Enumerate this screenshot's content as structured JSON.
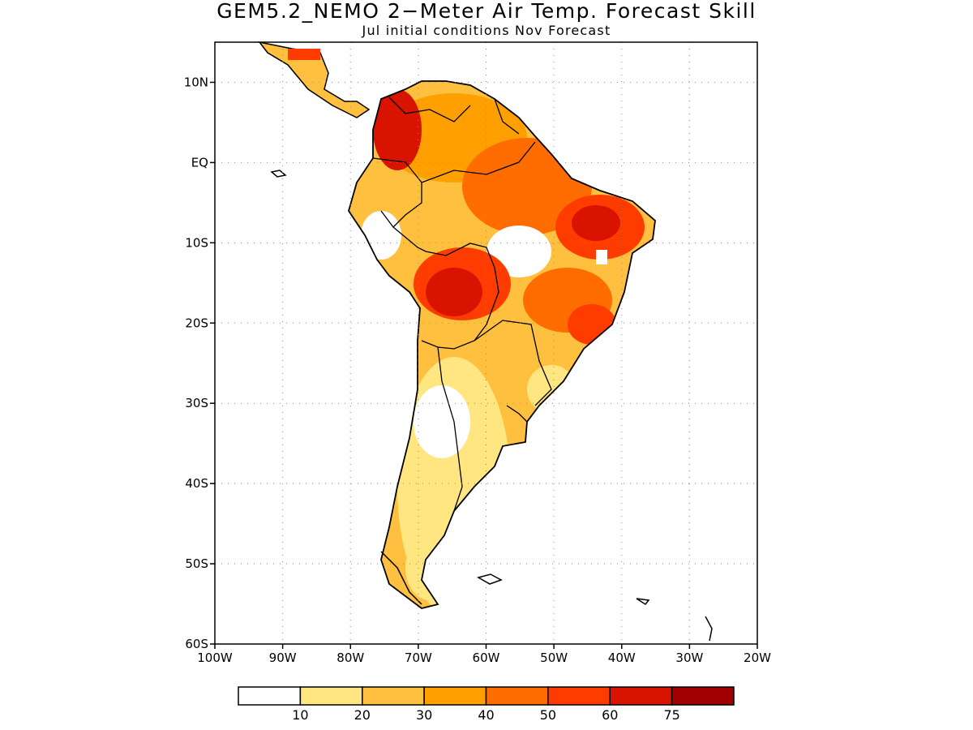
{
  "header": {
    "title": "GEM5.2_NEMO 2−Meter Air Temp. Forecast Skill",
    "subtitle": "Jul initial conditions  Nov Forecast"
  },
  "map": {
    "lon_range": [
      -100,
      -20
    ],
    "lat_range": [
      -60,
      15
    ],
    "y_ticks": [
      "10N",
      "EQ",
      "10S",
      "20S",
      "30S",
      "40S",
      "50S",
      "60S"
    ],
    "x_ticks": [
      "100W",
      "90W",
      "80W",
      "70W",
      "60W",
      "50W",
      "40W",
      "30W",
      "20W"
    ],
    "grid": "dotted"
  },
  "colorbar": {
    "colors": [
      "#ffffff",
      "#ffe680",
      "#ffc040",
      "#ffa000",
      "#ff6c00",
      "#ff3c00",
      "#d81400",
      "#a00000"
    ],
    "labels": [
      "10",
      "20",
      "30",
      "40",
      "50",
      "60",
      "75"
    ]
  }
}
